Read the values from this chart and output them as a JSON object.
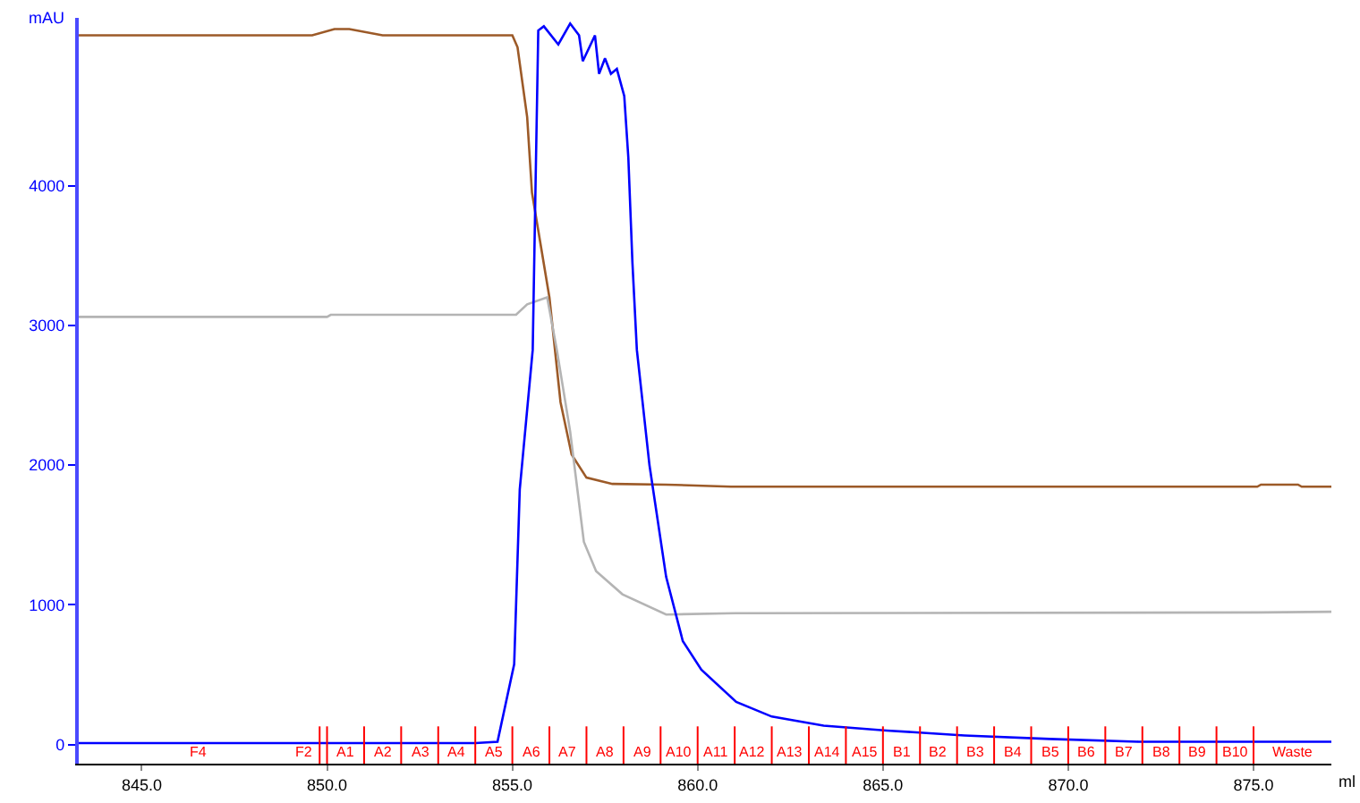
{
  "chart_data": {
    "type": "line",
    "ylabel": "mAU",
    "xlabel": "ml",
    "xlim": [
      843.3,
      877.1
    ],
    "ylim": [
      -137,
      5200
    ],
    "xticks": [
      {
        "value": 845,
        "label": "845.0"
      },
      {
        "value": 850,
        "label": "850.0"
      },
      {
        "value": 855,
        "label": "855.0"
      },
      {
        "value": 860,
        "label": "860.0"
      },
      {
        "value": 865,
        "label": "865.0"
      },
      {
        "value": 870,
        "label": "870.0"
      },
      {
        "value": 875,
        "label": "875.0"
      }
    ],
    "yticks": [
      0,
      1000,
      2000,
      3000,
      4000
    ],
    "annotations": [
      "F4"
    ],
    "grid": false,
    "marker": "none",
    "line_style": "solid",
    "series": [
      {
        "color": "#9c5a28",
        "x": [
          843.3,
          849.6,
          850.2,
          850.6,
          851.5,
          855.0,
          855.14,
          855.4,
          855.53,
          856.0,
          856.3,
          856.6,
          857.0,
          857.7,
          859.15,
          860.9,
          875.1,
          875.2,
          876.2,
          876.3,
          877.1
        ],
        "values": [
          5075,
          5075,
          5120,
          5120,
          5075,
          5075,
          4990,
          4490,
          3950,
          3200,
          2450,
          2075,
          1910,
          1865,
          1860,
          1845,
          1845,
          1860,
          1860,
          1845,
          1845
        ]
      },
      {
        "color": "#b4b4b4",
        "x": [
          843.3,
          850.0,
          850.1,
          855.1,
          855.4,
          855.94,
          856.2,
          856.56,
          856.93,
          857.26,
          857.97,
          859.15,
          861.0,
          875.2,
          877.1
        ],
        "values": [
          3060,
          3060,
          3075,
          3075,
          3150,
          3200,
          2825,
          2240,
          1450,
          1240,
          1075,
          930,
          940,
          945,
          950
        ]
      },
      {
        "color": "#0000ff",
        "x": [
          843.3,
          854.0,
          854.6,
          855.05,
          855.2,
          855.55,
          855.62,
          855.7,
          855.85,
          856.24,
          856.56,
          856.8,
          856.9,
          857.23,
          857.34,
          857.5,
          857.66,
          857.82,
          858.02,
          858.13,
          858.24,
          858.36,
          858.7,
          859.15,
          859.6,
          860.1,
          861.04,
          862.0,
          863.4,
          865.1,
          867.2,
          869.5,
          871.9,
          877.1
        ],
        "values": [
          10,
          10,
          20,
          575,
          1825,
          2825,
          3910,
          5110,
          5140,
          5010,
          5160,
          5075,
          4890,
          5075,
          4800,
          4910,
          4800,
          4835,
          4640,
          4200,
          3450,
          2825,
          2000,
          1200,
          740,
          535,
          305,
          200,
          135,
          100,
          65,
          40,
          20,
          20
        ]
      }
    ],
    "ref_lines": [
      {
        "axis": "x",
        "value": 849.8,
        "label": "F2",
        "color": "#ff0000"
      },
      {
        "axis": "x",
        "value": 850,
        "label": "A1",
        "color": "#ff0000"
      },
      {
        "axis": "x",
        "value": 851,
        "label": "A2",
        "color": "#ff0000"
      },
      {
        "axis": "x",
        "value": 852,
        "label": "A3",
        "color": "#ff0000"
      },
      {
        "axis": "x",
        "value": 853,
        "label": "A4",
        "color": "#ff0000"
      },
      {
        "axis": "x",
        "value": 854,
        "label": "A5",
        "color": "#ff0000"
      },
      {
        "axis": "x",
        "value": 855,
        "label": "A6",
        "color": "#ff0000"
      },
      {
        "axis": "x",
        "value": 856,
        "label": "A7",
        "color": "#ff0000"
      },
      {
        "axis": "x",
        "value": 857,
        "label": "A8",
        "color": "#ff0000"
      },
      {
        "axis": "x",
        "value": 858,
        "label": "A9",
        "color": "#ff0000"
      },
      {
        "axis": "x",
        "value": 859,
        "label": "A10",
        "color": "#ff0000"
      },
      {
        "axis": "x",
        "value": 860,
        "label": "A11",
        "color": "#ff0000"
      },
      {
        "axis": "x",
        "value": 861,
        "label": "A12",
        "color": "#ff0000"
      },
      {
        "axis": "x",
        "value": 862,
        "label": "A13",
        "color": "#ff0000"
      },
      {
        "axis": "x",
        "value": 863,
        "label": "A14",
        "color": "#ff0000"
      },
      {
        "axis": "x",
        "value": 864,
        "label": "A15",
        "color": "#ff0000"
      },
      {
        "axis": "x",
        "value": 865,
        "label": "B1",
        "color": "#ff0000"
      },
      {
        "axis": "x",
        "value": 866,
        "label": "B2",
        "color": "#ff0000"
      },
      {
        "axis": "x",
        "value": 867,
        "label": "B3",
        "color": "#ff0000"
      },
      {
        "axis": "x",
        "value": 868,
        "label": "B4",
        "color": "#ff0000"
      },
      {
        "axis": "x",
        "value": 869,
        "label": "B5",
        "color": "#ff0000"
      },
      {
        "axis": "x",
        "value": 870,
        "label": "B6",
        "color": "#ff0000"
      },
      {
        "axis": "x",
        "value": 871,
        "label": "B7",
        "color": "#ff0000"
      },
      {
        "axis": "x",
        "value": 872,
        "label": "B8",
        "color": "#ff0000"
      },
      {
        "axis": "x",
        "value": 873,
        "label": "B9",
        "color": "#ff0000"
      },
      {
        "axis": "x",
        "value": 874,
        "label": "B10",
        "color": "#ff0000"
      },
      {
        "axis": "x",
        "value": 875,
        "label": "Waste",
        "color": "#ff0000"
      }
    ]
  }
}
